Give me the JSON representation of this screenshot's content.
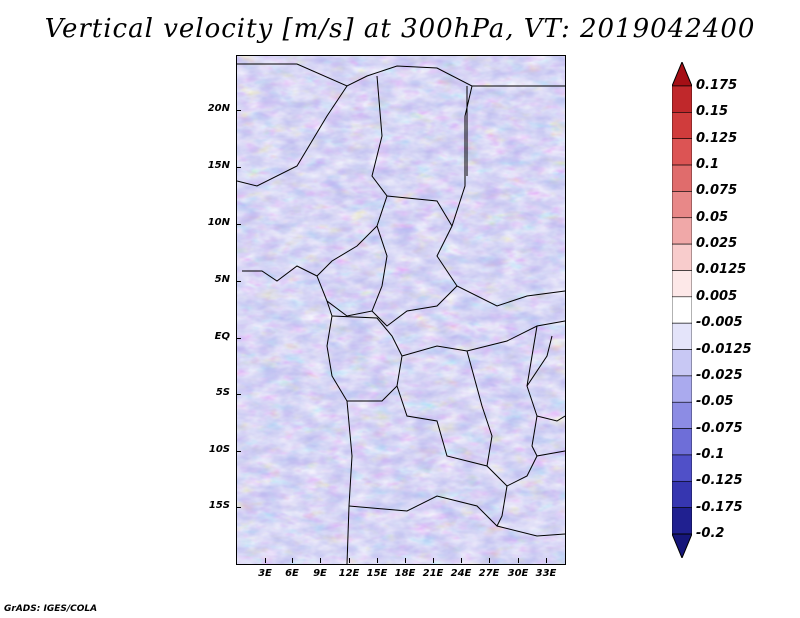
{
  "title": "Vertical velocity [m/s] at 300hPa, VT: 2019042400",
  "latitude_labels": [
    "20N",
    "15N",
    "10N",
    "5N",
    "EQ",
    "5S",
    "10S",
    "15S"
  ],
  "longitude_labels": [
    "3E",
    "6E",
    "9E",
    "12E",
    "15E",
    "18E",
    "21E",
    "24E",
    "27E",
    "30E",
    "33E"
  ],
  "colorbar": {
    "levels": [
      "0.175",
      "0.15",
      "0.125",
      "0.1",
      "0.075",
      "0.05",
      "0.025",
      "0.0125",
      "0.005",
      "-0.005",
      "-0.0125",
      "-0.025",
      "-0.05",
      "-0.075",
      "-0.1",
      "-0.125",
      "-0.175",
      "-0.2"
    ],
    "colors": [
      "#a50f15",
      "#c0282b",
      "#d03c3c",
      "#dc5454",
      "#e06c6c",
      "#e88888",
      "#f0a8a8",
      "#f8cccc",
      "#fde8e8",
      "#ffffff",
      "#e4e4fa",
      "#c8c8f4",
      "#aaaaee",
      "#8c8ce4",
      "#6e6ed8",
      "#5050c8",
      "#3636b0",
      "#202090",
      "#16167a"
    ]
  },
  "footer": "GrADS: IGES/COLA"
}
